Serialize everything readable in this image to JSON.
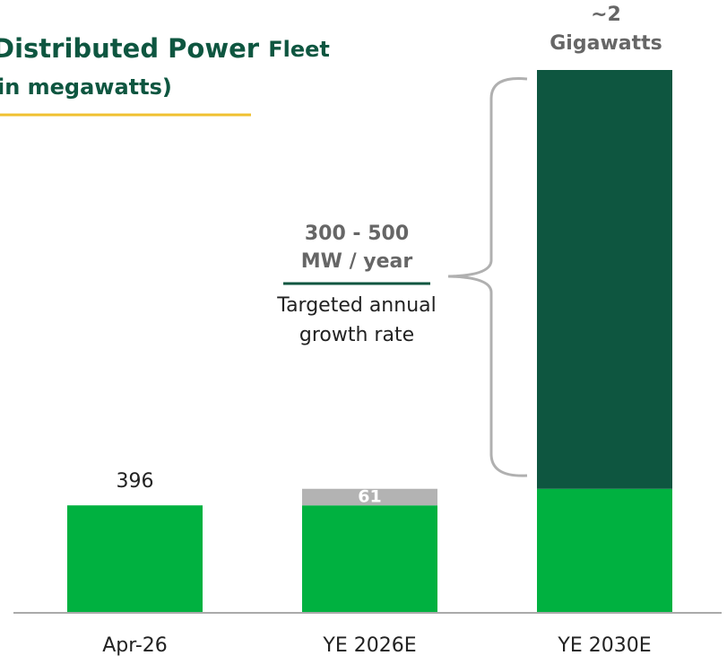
{
  "chart_data": {
    "type": "stacked_bar",
    "title": "Distributed Power",
    "title_suffix": "Fleet",
    "subtitle": "(in megawatts)",
    "categories": [
      "Apr-26",
      "YE 2026E",
      "YE 2030E"
    ],
    "series": [
      {
        "color": "#00b140",
        "values": [
          396,
          396,
          457
        ],
        "value_labels": [
          "396",
          null,
          null
        ]
      },
      {
        "color": "#b3b3b3",
        "values": [
          null,
          61,
          null
        ],
        "value_labels": [
          null,
          "61",
          null
        ]
      },
      {
        "color": "#0e5640",
        "values": [
          null,
          null,
          1543
        ]
      }
    ],
    "annotations": {
      "total": [
        "~2",
        "Gigawatts"
      ],
      "rate": [
        "300 - 500",
        "MW / year"
      ],
      "rate_note": [
        "Targeted annual",
        "growth rate"
      ]
    }
  }
}
